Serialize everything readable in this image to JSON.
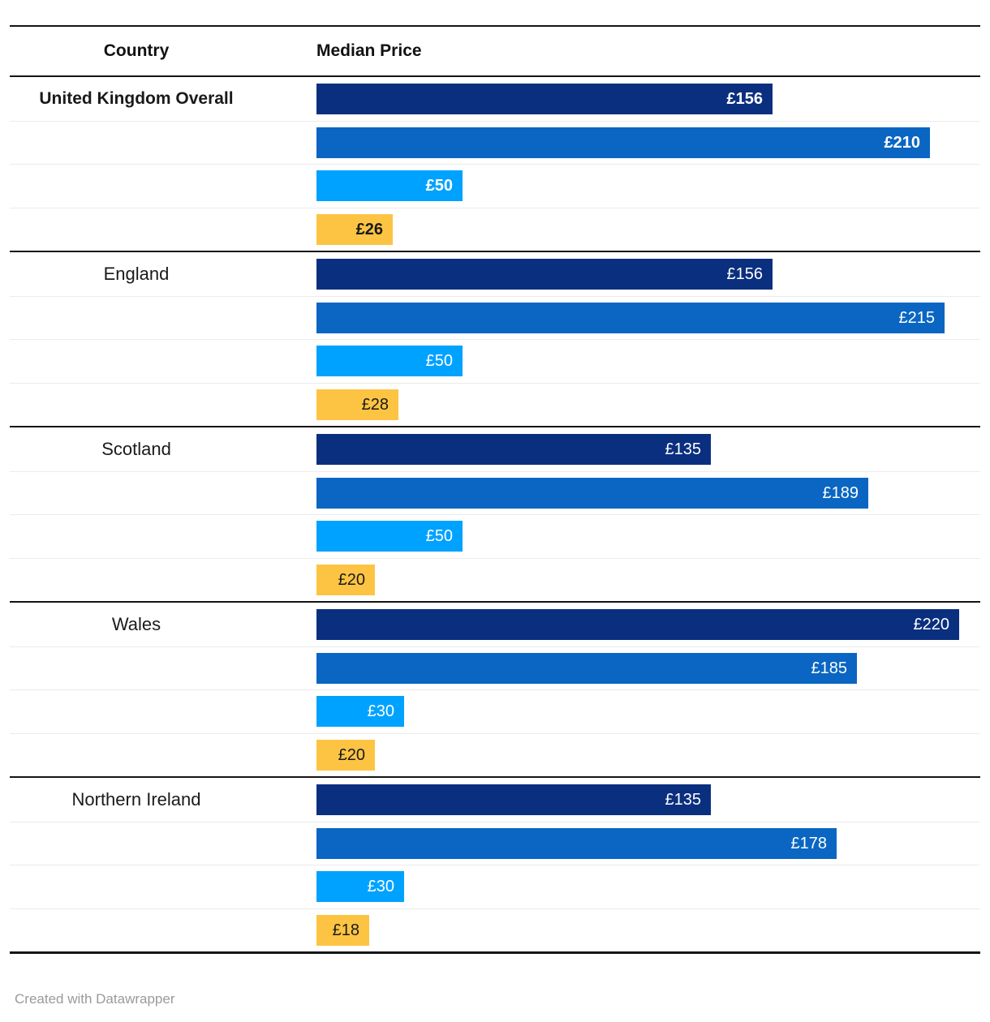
{
  "header": {
    "country": "Country",
    "median_price": "Median Price"
  },
  "footer": {
    "credit": "Created with Datawrapper"
  },
  "colors": {
    "navy": "#0b2f7f",
    "blue": "#0a66c2",
    "lightblue": "#00a2ff",
    "yellow": "#fdc443",
    "text_on_dark": "#ffffff",
    "text_on_yellow": "#1a1a1a",
    "rule_dark": "#141414",
    "rule_light": "#ebebeb",
    "credit_gray": "#9a9a9a"
  },
  "chart_data": {
    "type": "bar",
    "title": "",
    "orientation": "horizontal",
    "columns": [
      "Country",
      "Median Price"
    ],
    "unit": "£",
    "xlim": [
      0,
      220
    ],
    "grid": false,
    "legend": "none",
    "categories": [
      "United Kingdom Overall",
      "England",
      "Scotland",
      "Wales",
      "Northern Ireland"
    ],
    "groups": [
      {
        "label": "United Kingdom Overall",
        "emphasis": true,
        "bars": [
          {
            "value": 156,
            "display": "£156",
            "color_key": "navy"
          },
          {
            "value": 210,
            "display": "£210",
            "color_key": "blue"
          },
          {
            "value": 50,
            "display": "£50",
            "color_key": "lightblue"
          },
          {
            "value": 26,
            "display": "£26",
            "color_key": "yellow"
          }
        ]
      },
      {
        "label": "England",
        "emphasis": false,
        "bars": [
          {
            "value": 156,
            "display": "£156",
            "color_key": "navy"
          },
          {
            "value": 215,
            "display": "£215",
            "color_key": "blue"
          },
          {
            "value": 50,
            "display": "£50",
            "color_key": "lightblue"
          },
          {
            "value": 28,
            "display": "£28",
            "color_key": "yellow"
          }
        ]
      },
      {
        "label": "Scotland",
        "emphasis": false,
        "bars": [
          {
            "value": 135,
            "display": "£135",
            "color_key": "navy"
          },
          {
            "value": 189,
            "display": "£189",
            "color_key": "blue"
          },
          {
            "value": 50,
            "display": "£50",
            "color_key": "lightblue"
          },
          {
            "value": 20,
            "display": "£20",
            "color_key": "yellow"
          }
        ]
      },
      {
        "label": "Wales",
        "emphasis": false,
        "bars": [
          {
            "value": 220,
            "display": "£220",
            "color_key": "navy"
          },
          {
            "value": 185,
            "display": "£185",
            "color_key": "blue"
          },
          {
            "value": 30,
            "display": "£30",
            "color_key": "lightblue"
          },
          {
            "value": 20,
            "display": "£20",
            "color_key": "yellow"
          }
        ]
      },
      {
        "label": "Northern Ireland",
        "emphasis": false,
        "bars": [
          {
            "value": 135,
            "display": "£135",
            "color_key": "navy"
          },
          {
            "value": 178,
            "display": "£178",
            "color_key": "blue"
          },
          {
            "value": 30,
            "display": "£30",
            "color_key": "lightblue"
          },
          {
            "value": 18,
            "display": "£18",
            "color_key": "yellow"
          }
        ]
      }
    ]
  }
}
